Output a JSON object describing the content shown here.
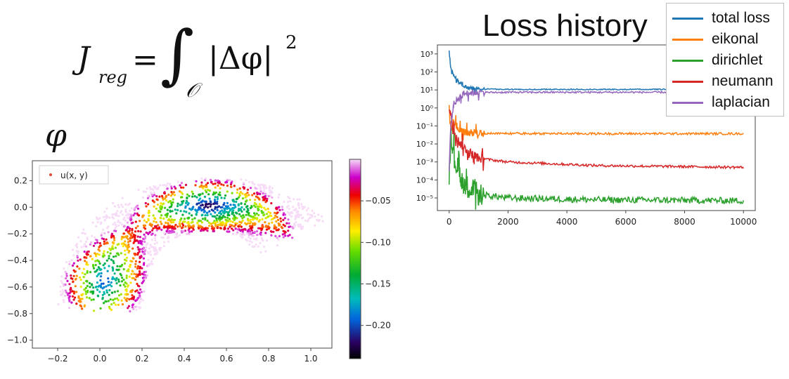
{
  "formula": {
    "J": "J",
    "sub": "reg",
    "eq": "=",
    "int": "∫",
    "domain": "𝒪",
    "body": "|Δφ|",
    "sup": "2"
  },
  "phi_label": "φ",
  "chart_data": [
    {
      "type": "scatter",
      "xlim": [
        -0.32,
        1.1
      ],
      "ylim": [
        -1.06,
        0.35
      ],
      "xticks": [
        "−0.2",
        "0.0",
        "0.2",
        "0.4",
        "0.6",
        "0.8",
        "1.0"
      ],
      "yticks": [
        "0.2",
        "0.0",
        "−0.2",
        "−0.4",
        "−0.6",
        "−0.8",
        "−1.0"
      ],
      "legend": [
        "u(x, y)"
      ],
      "legend_placement": "upper-left",
      "grid": false,
      "colormap": "nipy_spectral",
      "colorbar": {
        "ticks": [
          "−0.05",
          "−0.10",
          "−0.15",
          "−0.20"
        ],
        "range": [
          -0.24,
          0.0
        ]
      },
      "shape": {
        "spine": [
          [
            0.0,
            -0.75
          ],
          [
            0.02,
            -0.5
          ],
          [
            0.1,
            -0.25
          ],
          [
            0.25,
            -0.05
          ],
          [
            0.45,
            0.02
          ],
          [
            0.62,
            0.02
          ],
          [
            0.78,
            -0.05
          ],
          [
            0.9,
            -0.2
          ]
        ],
        "point_count": 1800
      }
    },
    {
      "type": "line",
      "title": "Loss history",
      "yscale": "log",
      "xlim": [
        -400,
        10400
      ],
      "ylim": [
        -5.7,
        3.5
      ],
      "xticks": [
        "0",
        "2000",
        "4000",
        "6000",
        "8000",
        "10000"
      ],
      "yticks": [
        "10³",
        "10²",
        "10¹",
        "10⁰",
        "10⁻¹",
        "10⁻²",
        "10⁻³",
        "10⁻⁴",
        "10⁻⁵"
      ],
      "legend_placement": "top-right",
      "grid": false,
      "series": [
        {
          "name": "total loss",
          "color": "#1f77b4",
          "x": [
            0,
            50,
            150,
            300,
            500,
            800,
            1000,
            2000,
            5000,
            10000
          ],
          "log10_y": [
            3.1,
            2.3,
            1.9,
            1.5,
            1.2,
            1.08,
            1.05,
            1.03,
            1.03,
            1.03
          ]
        },
        {
          "name": "eikonal",
          "color": "#ff7f0e",
          "x": [
            0,
            50,
            150,
            300,
            500,
            800,
            1000,
            2000,
            5000,
            10000
          ],
          "log10_y": [
            0.0,
            -1.2,
            -0.8,
            -1.1,
            -1.35,
            -1.4,
            -1.42,
            -1.42,
            -1.43,
            -1.43
          ]
        },
        {
          "name": "dirichlet",
          "color": "#2ca02c",
          "x": [
            0,
            50,
            150,
            300,
            500,
            800,
            1000,
            2000,
            5000,
            10000
          ],
          "log10_y": [
            -4.0,
            -1.0,
            -2.8,
            -3.4,
            -4.2,
            -4.6,
            -4.8,
            -5.0,
            -5.1,
            -5.15
          ]
        },
        {
          "name": "neumann",
          "color": "#d62728",
          "x": [
            0,
            50,
            150,
            300,
            500,
            800,
            1000,
            2000,
            5000,
            10000
          ],
          "log10_y": [
            0.0,
            -0.3,
            -1.2,
            -1.8,
            -2.2,
            -2.6,
            -2.8,
            -3.0,
            -3.2,
            -3.3
          ]
        },
        {
          "name": "laplacian",
          "color": "#9467bd",
          "x": [
            0,
            50,
            150,
            300,
            500,
            800,
            1000,
            2000,
            5000,
            10000
          ],
          "log10_y": [
            -3.5,
            -1.0,
            0.2,
            0.5,
            0.8,
            0.85,
            0.86,
            0.87,
            0.87,
            0.87
          ]
        }
      ]
    }
  ]
}
